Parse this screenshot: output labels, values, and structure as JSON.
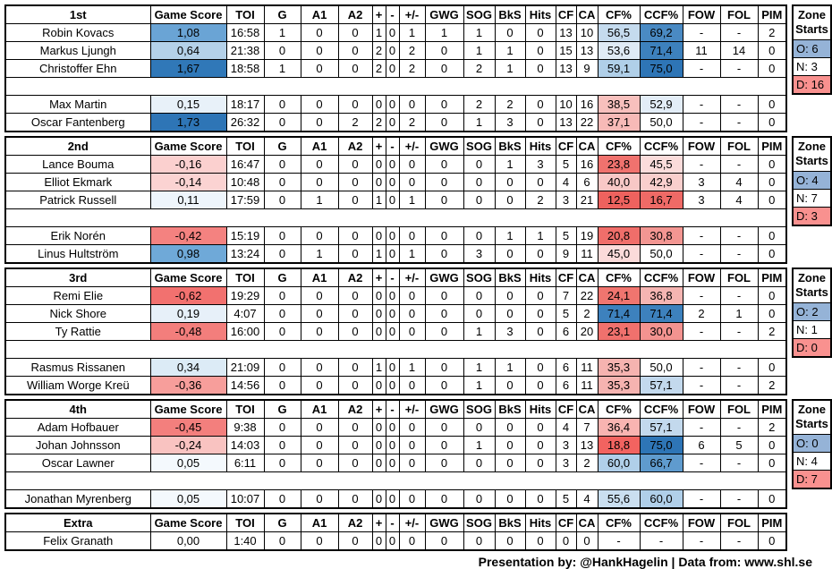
{
  "chart_data": {
    "type": "table",
    "title": "SHL line stats by period line (Game Score / Corsi sheet)",
    "column_headers": [
      "Game Score",
      "TOI",
      "G",
      "A1",
      "A2",
      "+",
      "-",
      "+/-",
      "GWG",
      "SOG",
      "BkS",
      "Hits",
      "CF",
      "CA",
      "CF%",
      "CCF%",
      "FOW",
      "FOL",
      "PIM"
    ],
    "zone_header_line1": "Zone",
    "zone_header_line2": "Starts",
    "zone_colors": {
      "o": "#95b3d7",
      "n": "#ffffff",
      "d": "#f9918f"
    },
    "sections": [
      {
        "label": "1st",
        "zone": {
          "o": "O: 6",
          "n": "N: 3",
          "d": "D: 16"
        },
        "players": [
          {
            "name": "Robin Kovacs",
            "game_score": {
              "v": "1,08",
              "bg": "#6aa4d5"
            },
            "toi": "16:58",
            "g": "1",
            "a1": "0",
            "a2": "0",
            "plus": "1",
            "minus": "0",
            "plus_minus": "1",
            "gwg": "1",
            "sog": "1",
            "bks": "0",
            "hits": "0",
            "cf": "13",
            "ca": "10",
            "cf_pct": {
              "v": "56,5",
              "bg": "#c5dbee"
            },
            "ccf_pct": {
              "v": "69,2",
              "bg": "#4a8ac3"
            },
            "fow": "-",
            "fol": "-",
            "pim": "2"
          },
          {
            "name": "Markus Ljungh",
            "game_score": {
              "v": "0,64",
              "bg": "#b4d1e9"
            },
            "toi": "21:38",
            "g": "0",
            "a1": "0",
            "a2": "0",
            "plus": "2",
            "minus": "0",
            "plus_minus": "2",
            "gwg": "0",
            "sog": "1",
            "bks": "1",
            "hits": "0",
            "cf": "15",
            "ca": "13",
            "cf_pct": {
              "v": "53,6",
              "bg": "#dfeaf5"
            },
            "ccf_pct": {
              "v": "71,4",
              "bg": "#3d81bd"
            },
            "fow": "11",
            "fol": "14",
            "pim": "0"
          },
          {
            "name": "Christoffer Ehn",
            "game_score": {
              "v": "1,67",
              "bg": "#3078b8"
            },
            "toi": "18:58",
            "g": "1",
            "a1": "0",
            "a2": "0",
            "plus": "2",
            "minus": "0",
            "plus_minus": "2",
            "gwg": "0",
            "sog": "2",
            "bks": "1",
            "hits": "0",
            "cf": "13",
            "ca": "9",
            "cf_pct": {
              "v": "59,1",
              "bg": "#b0cfe8"
            },
            "ccf_pct": {
              "v": "75,0",
              "bg": "#2e75b6"
            },
            "fow": "-",
            "fol": "-",
            "pim": "0"
          },
          null,
          {
            "name": "Max Martin",
            "game_score": {
              "v": "0,15",
              "bg": "#e8f1f9"
            },
            "toi": "18:17",
            "g": "0",
            "a1": "0",
            "a2": "0",
            "plus": "0",
            "minus": "0",
            "plus_minus": "0",
            "gwg": "0",
            "sog": "2",
            "bks": "2",
            "hits": "0",
            "cf": "10",
            "ca": "16",
            "cf_pct": {
              "v": "38,5",
              "bg": "#f7c0bd"
            },
            "ccf_pct": {
              "v": "52,9",
              "bg": "#e3edf7"
            },
            "fow": "-",
            "fol": "-",
            "pim": "0"
          },
          {
            "name": "Oscar Fantenberg",
            "game_score": {
              "v": "1,73",
              "bg": "#2e75b6"
            },
            "toi": "26:32",
            "g": "0",
            "a1": "0",
            "a2": "2",
            "plus": "2",
            "minus": "0",
            "plus_minus": "2",
            "gwg": "0",
            "sog": "1",
            "bks": "3",
            "hits": "0",
            "cf": "13",
            "ca": "22",
            "cf_pct": {
              "v": "37,1",
              "bg": "#f7bab7"
            },
            "ccf_pct": {
              "v": "50,0",
              "bg": "#ffffff"
            },
            "fow": "-",
            "fol": "-",
            "pim": "0"
          }
        ]
      },
      {
        "label": "2nd",
        "zone": {
          "o": "O: 4",
          "n": "N: 7",
          "d": "D: 3"
        },
        "players": [
          {
            "name": "Lance Bouma",
            "game_score": {
              "v": "-0,16",
              "bg": "#fbd0cf"
            },
            "toi": "16:47",
            "g": "0",
            "a1": "0",
            "a2": "0",
            "plus": "0",
            "minus": "0",
            "plus_minus": "0",
            "gwg": "0",
            "sog": "0",
            "bks": "1",
            "hits": "3",
            "cf": "5",
            "ca": "16",
            "cf_pct": {
              "v": "23,8",
              "bg": "#f0726e"
            },
            "ccf_pct": {
              "v": "45,5",
              "bg": "#fbdcdb"
            },
            "fow": "-",
            "fol": "-",
            "pim": "0"
          },
          {
            "name": "Elliot Ekmark",
            "game_score": {
              "v": "-0,14",
              "bg": "#fbd3d2"
            },
            "toi": "10:48",
            "g": "0",
            "a1": "0",
            "a2": "0",
            "plus": "0",
            "minus": "0",
            "plus_minus": "0",
            "gwg": "0",
            "sog": "0",
            "bks": "0",
            "hits": "0",
            "cf": "4",
            "ca": "6",
            "cf_pct": {
              "v": "40,0",
              "bg": "#f8c8c6"
            },
            "ccf_pct": {
              "v": "42,9",
              "bg": "#f9cfcd"
            },
            "fow": "3",
            "fol": "4",
            "pim": "0"
          },
          {
            "name": "Patrick Russell",
            "game_score": {
              "v": "0,11",
              "bg": "#eef5fb"
            },
            "toi": "17:59",
            "g": "0",
            "a1": "1",
            "a2": "0",
            "plus": "1",
            "minus": "0",
            "plus_minus": "1",
            "gwg": "0",
            "sog": "0",
            "bks": "0",
            "hits": "2",
            "cf": "3",
            "ca": "21",
            "cf_pct": {
              "v": "12,5",
              "bg": "#ee625e"
            },
            "ccf_pct": {
              "v": "16,7",
              "bg": "#ef6a66"
            },
            "fow": "3",
            "fol": "4",
            "pim": "0"
          },
          null,
          {
            "name": "Erik Norén",
            "game_score": {
              "v": "-0,42",
              "bg": "#f48280"
            },
            "toi": "15:19",
            "g": "0",
            "a1": "0",
            "a2": "0",
            "plus": "0",
            "minus": "0",
            "plus_minus": "0",
            "gwg": "0",
            "sog": "0",
            "bks": "1",
            "hits": "1",
            "cf": "5",
            "ca": "19",
            "cf_pct": {
              "v": "20,8",
              "bg": "#f06e6a"
            },
            "ccf_pct": {
              "v": "30,8",
              "bg": "#f39692"
            },
            "fow": "-",
            "fol": "-",
            "pim": "0"
          },
          {
            "name": "Linus Hultström",
            "game_score": {
              "v": "0,98",
              "bg": "#6fa9d8"
            },
            "toi": "13:24",
            "g": "0",
            "a1": "1",
            "a2": "0",
            "plus": "1",
            "minus": "0",
            "plus_minus": "1",
            "gwg": "0",
            "sog": "3",
            "bks": "0",
            "hits": "0",
            "cf": "9",
            "ca": "11",
            "cf_pct": {
              "v": "45,0",
              "bg": "#fbdbda"
            },
            "ccf_pct": {
              "v": "50,0",
              "bg": "#ffffff"
            },
            "fow": "-",
            "fol": "-",
            "pim": "0"
          }
        ]
      },
      {
        "label": "3rd",
        "zone": {
          "o": "O: 2",
          "n": "N: 1",
          "d": "D: 0"
        },
        "players": [
          {
            "name": "Remi Elie",
            "game_score": {
              "v": "-0,62",
              "bg": "#f2716f"
            },
            "toi": "19:29",
            "g": "0",
            "a1": "0",
            "a2": "0",
            "plus": "0",
            "minus": "0",
            "plus_minus": "0",
            "gwg": "0",
            "sog": "0",
            "bks": "0",
            "hits": "0",
            "cf": "7",
            "ca": "22",
            "cf_pct": {
              "v": "24,1",
              "bg": "#f0756f"
            },
            "ccf_pct": {
              "v": "36,8",
              "bg": "#f5b5b2"
            },
            "fow": "-",
            "fol": "-",
            "pim": "0"
          },
          {
            "name": "Nick Shore",
            "game_score": {
              "v": "0,19",
              "bg": "#e7f0f9"
            },
            "toi": "4:07",
            "g": "0",
            "a1": "0",
            "a2": "0",
            "plus": "0",
            "minus": "0",
            "plus_minus": "0",
            "gwg": "0",
            "sog": "0",
            "bks": "0",
            "hits": "0",
            "cf": "5",
            "ca": "2",
            "cf_pct": {
              "v": "71,4",
              "bg": "#3d81bd"
            },
            "ccf_pct": {
              "v": "71,4",
              "bg": "#3d81bd"
            },
            "fow": "2",
            "fol": "1",
            "pim": "0"
          },
          {
            "name": "Ty Rattie",
            "game_score": {
              "v": "-0,48",
              "bg": "#f37e7c"
            },
            "toi": "16:00",
            "g": "0",
            "a1": "0",
            "a2": "0",
            "plus": "0",
            "minus": "0",
            "plus_minus": "0",
            "gwg": "0",
            "sog": "1",
            "bks": "3",
            "hits": "0",
            "cf": "6",
            "ca": "20",
            "cf_pct": {
              "v": "23,1",
              "bg": "#f0716d"
            },
            "ccf_pct": {
              "v": "30,0",
              "bg": "#f39390"
            },
            "fow": "-",
            "fol": "-",
            "pim": "2"
          },
          null,
          {
            "name": "Rasmus Rissanen",
            "game_score": {
              "v": "0,34",
              "bg": "#dcebf6"
            },
            "toi": "21:09",
            "g": "0",
            "a1": "0",
            "a2": "0",
            "plus": "1",
            "minus": "0",
            "plus_minus": "1",
            "gwg": "0",
            "sog": "1",
            "bks": "1",
            "hits": "0",
            "cf": "6",
            "ca": "11",
            "cf_pct": {
              "v": "35,3",
              "bg": "#f5b3b0"
            },
            "ccf_pct": {
              "v": "50,0",
              "bg": "#ffffff"
            },
            "fow": "-",
            "fol": "-",
            "pim": "0"
          },
          {
            "name": "William Worge Kreü",
            "game_score": {
              "v": "-0,36",
              "bg": "#f79e9b"
            },
            "toi": "14:56",
            "g": "0",
            "a1": "0",
            "a2": "0",
            "plus": "0",
            "minus": "0",
            "plus_minus": "0",
            "gwg": "0",
            "sog": "1",
            "bks": "0",
            "hits": "0",
            "cf": "6",
            "ca": "11",
            "cf_pct": {
              "v": "35,3",
              "bg": "#f5b3b0"
            },
            "ccf_pct": {
              "v": "57,1",
              "bg": "#c3d9ed"
            },
            "fow": "-",
            "fol": "-",
            "pim": "2"
          }
        ]
      },
      {
        "label": "4th",
        "zone": {
          "o": "O: 0",
          "n": "N: 4",
          "d": "D: 7"
        },
        "players": [
          {
            "name": "Adam Hofbauer",
            "game_score": {
              "v": "-0,45",
              "bg": "#f37f7d"
            },
            "toi": "9:38",
            "g": "0",
            "a1": "0",
            "a2": "0",
            "plus": "0",
            "minus": "0",
            "plus_minus": "0",
            "gwg": "0",
            "sog": "0",
            "bks": "0",
            "hits": "0",
            "cf": "4",
            "ca": "7",
            "cf_pct": {
              "v": "36,4",
              "bg": "#f8b4b1"
            },
            "ccf_pct": {
              "v": "57,1",
              "bg": "#c3d9ed"
            },
            "fow": "-",
            "fol": "-",
            "pim": "2"
          },
          {
            "name": "Johan Johnsson",
            "game_score": {
              "v": "-0,24",
              "bg": "#f9c3c1"
            },
            "toi": "14:03",
            "g": "0",
            "a1": "0",
            "a2": "0",
            "plus": "0",
            "minus": "0",
            "plus_minus": "0",
            "gwg": "0",
            "sog": "1",
            "bks": "0",
            "hits": "0",
            "cf": "3",
            "ca": "13",
            "cf_pct": {
              "v": "18,8",
              "bg": "#f26360"
            },
            "ccf_pct": {
              "v": "75,0",
              "bg": "#2e75b6"
            },
            "fow": "6",
            "fol": "5",
            "pim": "0"
          },
          {
            "name": "Oscar Lawner",
            "game_score": {
              "v": "0,05",
              "bg": "#f4f9fd"
            },
            "toi": "6:11",
            "g": "0",
            "a1": "0",
            "a2": "0",
            "plus": "0",
            "minus": "0",
            "plus_minus": "0",
            "gwg": "0",
            "sog": "0",
            "bks": "0",
            "hits": "0",
            "cf": "3",
            "ca": "2",
            "cf_pct": {
              "v": "60,0",
              "bg": "#b0cfe9"
            },
            "ccf_pct": {
              "v": "66,7",
              "bg": "#5f9bce"
            },
            "fow": "-",
            "fol": "-",
            "pim": "0"
          },
          null,
          {
            "name": "Jonathan Myrenberg",
            "game_score": {
              "v": "0,05",
              "bg": "#f4f9fd"
            },
            "toi": "10:07",
            "g": "0",
            "a1": "0",
            "a2": "0",
            "plus": "0",
            "minus": "0",
            "plus_minus": "0",
            "gwg": "0",
            "sog": "0",
            "bks": "0",
            "hits": "0",
            "cf": "5",
            "ca": "4",
            "cf_pct": {
              "v": "55,6",
              "bg": "#cadff0"
            },
            "ccf_pct": {
              "v": "60,0",
              "bg": "#b0cfe9"
            },
            "fow": "-",
            "fol": "-",
            "pim": "0"
          }
        ]
      },
      {
        "label": "Extra",
        "zone": null,
        "players": [
          {
            "name": "Felix Granath",
            "game_score": {
              "v": "0,00",
              "bg": "#ffffff"
            },
            "toi": "1:40",
            "g": "0",
            "a1": "0",
            "a2": "0",
            "plus": "0",
            "minus": "0",
            "plus_minus": "0",
            "gwg": "0",
            "sog": "0",
            "bks": "0",
            "hits": "0",
            "cf": "0",
            "ca": "0",
            "cf_pct": {
              "v": "-",
              "bg": "#ffffff"
            },
            "ccf_pct": {
              "v": "-",
              "bg": "#ffffff"
            },
            "fow": "-",
            "fol": "-",
            "pim": "0"
          }
        ]
      }
    ]
  },
  "footer": {
    "credit": "Presentation by: @HankHagelin | Data from: www.shl.se"
  }
}
